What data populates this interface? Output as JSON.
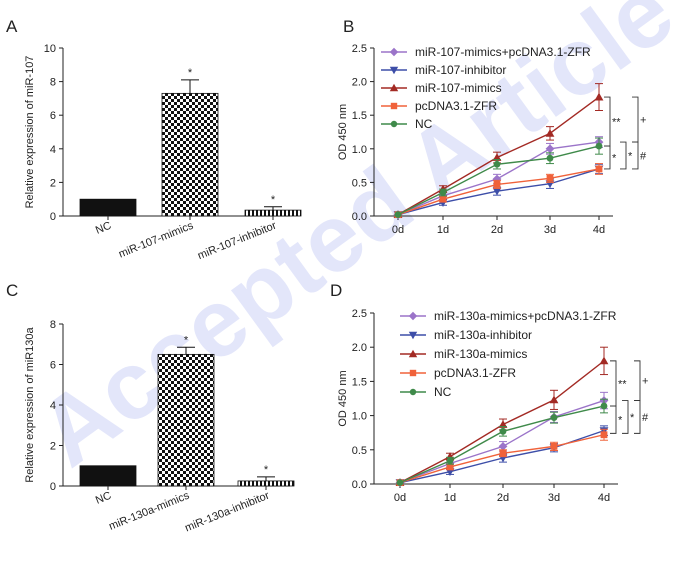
{
  "watermark": "Accepted Article",
  "colors": {
    "mimics_plus_zfr": "#9b74c9",
    "inhibitor": "#3d4ea8",
    "mimics": "#a32a24",
    "zfr": "#f0623a",
    "nc": "#3f8a4a",
    "bar": "#111111"
  },
  "chart_data": [
    {
      "panel": "A",
      "type": "bar",
      "ylabel": "Relative expression of miR-107",
      "ylim": [
        0,
        10
      ],
      "yticks": [
        "0",
        "2",
        "4",
        "6",
        "8",
        "10"
      ],
      "categories": [
        "NC",
        "miR-107-mimics",
        "miR-107-inhibitor"
      ],
      "values": [
        1.0,
        7.3,
        0.35
      ],
      "errors": [
        0,
        0.8,
        0.2
      ],
      "patterns": [
        "solid",
        "checker",
        "stripe"
      ],
      "significance": [
        "",
        "*",
        "*"
      ]
    },
    {
      "panel": "B",
      "type": "line",
      "ylabel": "OD 450 nm",
      "ylim": [
        0,
        2.5
      ],
      "yticks": [
        "0.0",
        "0.5",
        "1.0",
        "1.5",
        "2.0",
        "2.5"
      ],
      "x": [
        "0d",
        "1d",
        "2d",
        "3d",
        "4d"
      ],
      "series": [
        {
          "name": "miR-107-mimics+pcDNA3.1-ZFR",
          "color_key": "mimics_plus_zfr",
          "marker": "diamond",
          "values": [
            0.02,
            0.3,
            0.55,
            1.0,
            1.1
          ],
          "errors": [
            0,
            0.05,
            0.07,
            0.08,
            0.08
          ]
        },
        {
          "name": "miR-107-inhibitor",
          "color_key": "inhibitor",
          "marker": "triangle-down",
          "values": [
            0.02,
            0.2,
            0.37,
            0.48,
            0.7
          ],
          "errors": [
            0,
            0.04,
            0.06,
            0.07,
            0.07
          ]
        },
        {
          "name": "miR-107-mimics",
          "color_key": "mimics",
          "marker": "triangle-up",
          "values": [
            0.02,
            0.4,
            0.87,
            1.23,
            1.77
          ],
          "errors": [
            0,
            0.05,
            0.08,
            0.1,
            0.2
          ]
        },
        {
          "name": "pcDNA3.1-ZFR",
          "color_key": "zfr",
          "marker": "square",
          "values": [
            0.02,
            0.25,
            0.47,
            0.56,
            0.7
          ],
          "errors": [
            0,
            0.04,
            0.06,
            0.06,
            0.08
          ]
        },
        {
          "name": "NC",
          "color_key": "nc",
          "marker": "circle",
          "values": [
            0.02,
            0.35,
            0.77,
            0.86,
            1.04
          ],
          "errors": [
            0,
            0.05,
            0.07,
            0.08,
            0.12
          ]
        }
      ],
      "brackets": [
        {
          "label": "**",
          "from": 1.77,
          "to": 1.04,
          "level": 1
        },
        {
          "label": "*",
          "from": 1.04,
          "to": 0.7,
          "level": 1
        },
        {
          "label": "*",
          "from": 1.1,
          "to": 0.7,
          "level": 2
        },
        {
          "label": "+",
          "from": 1.77,
          "to": 1.1,
          "level": 3
        },
        {
          "label": "#",
          "from": 1.1,
          "to": 0.7,
          "level": 3
        }
      ]
    },
    {
      "panel": "C",
      "type": "bar",
      "ylabel": "Relative expression of miR130a",
      "ylim": [
        0,
        8
      ],
      "yticks": [
        "0",
        "2",
        "4",
        "6",
        "8"
      ],
      "categories": [
        "NC",
        "miR-130a-mimics",
        "miR-130a-inhibitor"
      ],
      "values": [
        1.0,
        6.5,
        0.25
      ],
      "errors": [
        0,
        0.35,
        0.2
      ],
      "patterns": [
        "solid",
        "checker",
        "stripe"
      ],
      "significance": [
        "",
        "*",
        "*"
      ]
    },
    {
      "panel": "D",
      "type": "line",
      "ylabel": "OD 450 nm",
      "ylim": [
        0,
        2.5
      ],
      "yticks": [
        "0.0",
        "0.5",
        "1.0",
        "1.5",
        "2.0",
        "2.5"
      ],
      "x": [
        "0d",
        "1d",
        "2d",
        "3d",
        "4d"
      ],
      "series": [
        {
          "name": "miR-130a-mimics+pcDNA3.1-ZFR",
          "color_key": "mimics_plus_zfr",
          "marker": "diamond",
          "values": [
            0.02,
            0.3,
            0.55,
            0.98,
            1.22
          ],
          "errors": [
            0,
            0.05,
            0.07,
            0.08,
            0.12
          ]
        },
        {
          "name": "miR-130a-inhibitor",
          "color_key": "inhibitor",
          "marker": "triangle-down",
          "values": [
            0.02,
            0.18,
            0.38,
            0.53,
            0.78
          ],
          "errors": [
            0,
            0.04,
            0.06,
            0.06,
            0.07
          ]
        },
        {
          "name": "miR-130a-mimics",
          "color_key": "mimics",
          "marker": "triangle-up",
          "values": [
            0.02,
            0.4,
            0.87,
            1.23,
            1.8
          ],
          "errors": [
            0,
            0.05,
            0.08,
            0.14,
            0.2
          ]
        },
        {
          "name": "pcDNA3.1-ZFR",
          "color_key": "zfr",
          "marker": "square",
          "values": [
            0.02,
            0.25,
            0.45,
            0.55,
            0.72
          ],
          "errors": [
            0,
            0.04,
            0.05,
            0.06,
            0.08
          ]
        },
        {
          "name": "NC",
          "color_key": "nc",
          "marker": "circle",
          "values": [
            0.02,
            0.34,
            0.77,
            0.97,
            1.14
          ],
          "errors": [
            0,
            0.05,
            0.07,
            0.08,
            0.1
          ]
        }
      ],
      "brackets": [
        {
          "label": "**",
          "from": 1.8,
          "to": 1.14,
          "level": 1
        },
        {
          "label": "*",
          "from": 1.14,
          "to": 0.74,
          "level": 1
        },
        {
          "label": "*",
          "from": 1.22,
          "to": 0.74,
          "level": 2
        },
        {
          "label": "+",
          "from": 1.8,
          "to": 1.22,
          "level": 3
        },
        {
          "label": "#",
          "from": 1.22,
          "to": 0.74,
          "level": 3
        }
      ]
    }
  ]
}
